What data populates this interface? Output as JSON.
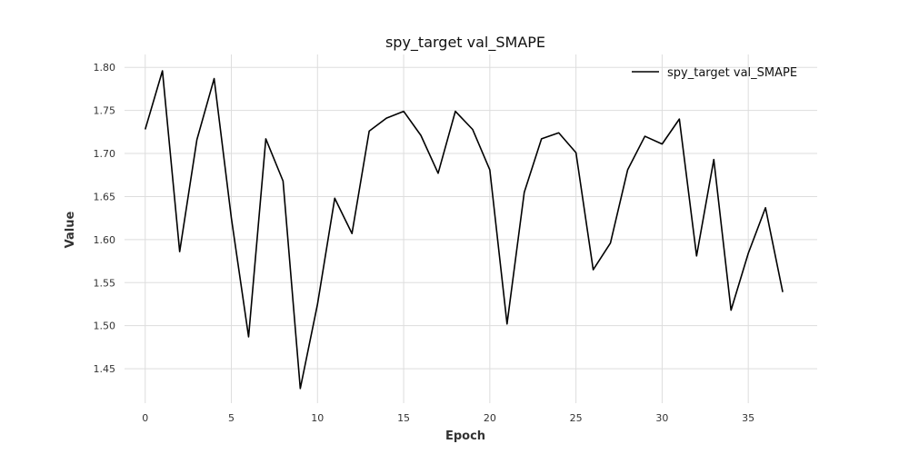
{
  "chart_data": {
    "type": "line",
    "title": "spy_target val_SMAPE",
    "xlabel": "Epoch",
    "ylabel": "Value",
    "xlim": [
      -1.2,
      39
    ],
    "ylim": [
      1.41,
      1.815
    ],
    "xticks": [
      0,
      5,
      10,
      15,
      20,
      25,
      30,
      35
    ],
    "yticks": [
      1.45,
      1.5,
      1.55,
      1.6,
      1.65,
      1.7,
      1.75,
      1.8
    ],
    "ytick_labels": [
      "1.45",
      "1.50",
      "1.55",
      "1.60",
      "1.65",
      "1.70",
      "1.75",
      "1.80"
    ],
    "grid": true,
    "legend_position": "top-right",
    "series": [
      {
        "name": "spy_target val_SMAPE",
        "color": "#000000",
        "x": [
          0,
          1,
          2,
          3,
          4,
          5,
          6,
          7,
          8,
          9,
          10,
          11,
          12,
          13,
          14,
          15,
          16,
          17,
          18,
          19,
          20,
          21,
          22,
          23,
          24,
          25,
          26,
          27,
          28,
          29,
          30,
          31,
          32,
          33,
          34,
          35,
          36,
          37
        ],
        "values": [
          1.728,
          1.796,
          1.586,
          1.716,
          1.787,
          1.625,
          1.487,
          1.717,
          1.668,
          1.427,
          1.525,
          1.648,
          1.607,
          1.726,
          1.741,
          1.749,
          1.721,
          1.677,
          1.749,
          1.728,
          1.681,
          1.502,
          1.655,
          1.717,
          1.724,
          1.701,
          1.565,
          1.596,
          1.681,
          1.72,
          1.711,
          1.74,
          1.581,
          1.693,
          1.518,
          1.584,
          1.637,
          1.539
        ]
      }
    ]
  }
}
